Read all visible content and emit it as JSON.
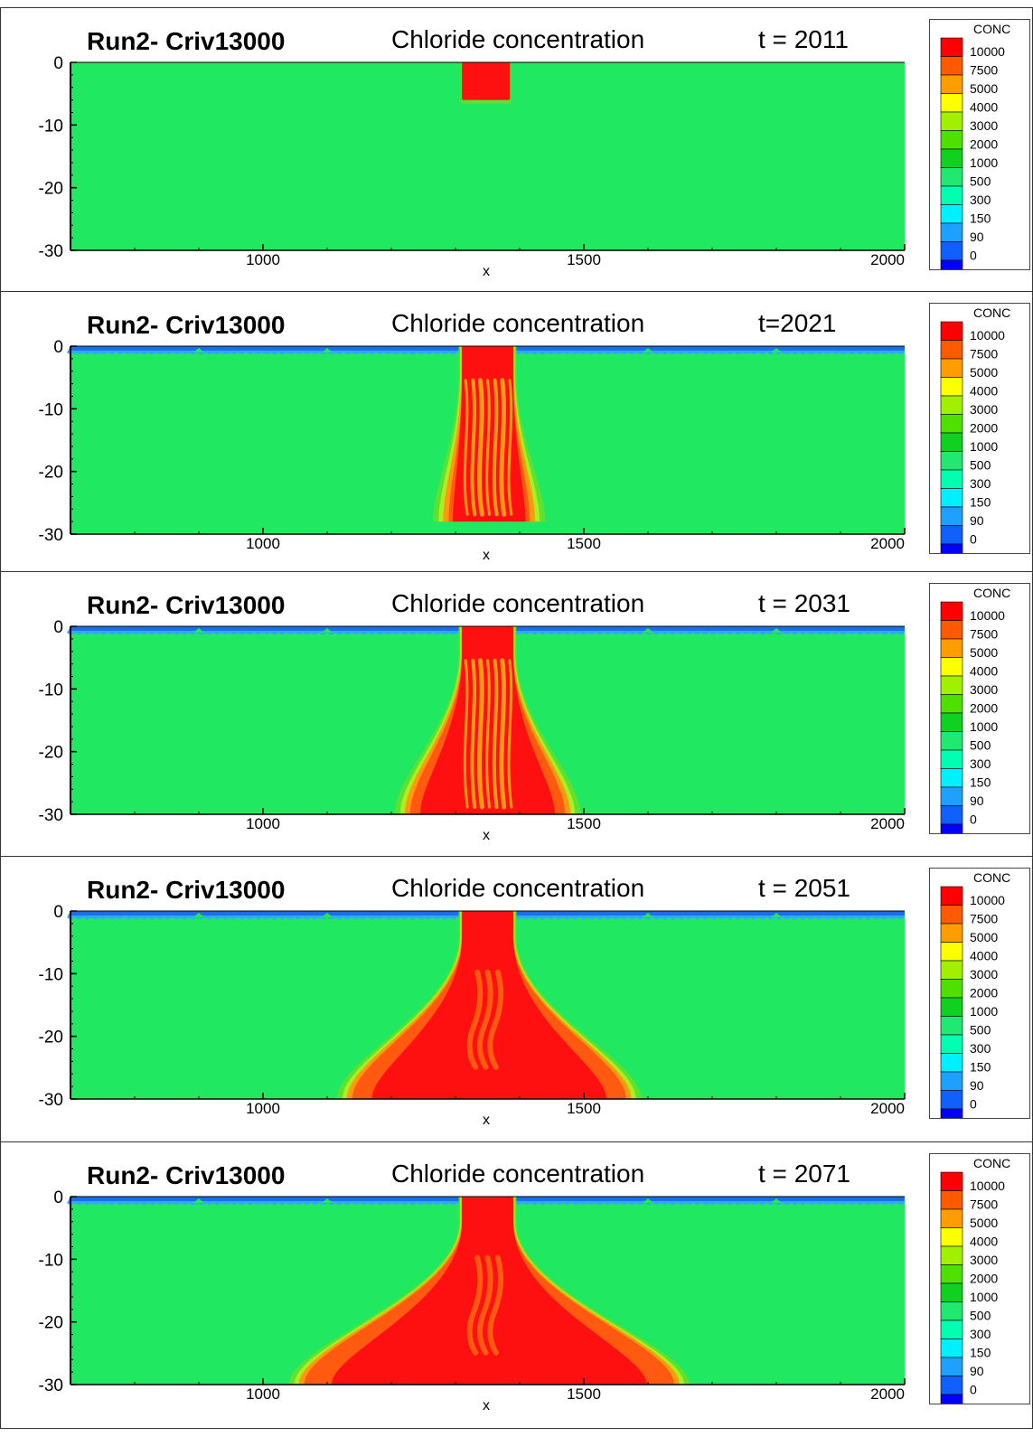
{
  "colors": {
    "background": "#20e860",
    "red": "#ff1010",
    "orange_dark": "#ff5a10",
    "orange": "#ff9a10",
    "yellow_green": "#a8f020",
    "green": "#60e030",
    "surface_blue": "#1a6fe8",
    "light_blue": "#30a8ff"
  },
  "legend": {
    "title": "CONC",
    "levels": [
      {
        "label": "10000",
        "color": "#ff0000"
      },
      {
        "label": "7500",
        "color": "#ff5a00"
      },
      {
        "label": "5000",
        "color": "#ff9c00"
      },
      {
        "label": "4000",
        "color": "#ffff00"
      },
      {
        "label": "3000",
        "color": "#a0f000"
      },
      {
        "label": "2000",
        "color": "#50e000"
      },
      {
        "label": "1000",
        "color": "#10d020"
      },
      {
        "label": "500",
        "color": "#20e870"
      },
      {
        "label": "300",
        "color": "#00ffb0"
      },
      {
        "label": "150",
        "color": "#00f0ff"
      },
      {
        "label": "90",
        "color": "#1ea0ff"
      },
      {
        "label": "0",
        "color": "#1060ff"
      },
      {
        "label": "",
        "color": "#0000ff"
      }
    ]
  },
  "chart_data": [
    {
      "type": "heatmap",
      "run_label": "Run2- Criv13000",
      "title": "Chloride concentration",
      "time_label": "t =  2011",
      "xlabel": "x",
      "x_ticks": [
        "1000",
        "1500",
        "2000"
      ],
      "y_ticks": [
        "0",
        "-10",
        "-20",
        "-30"
      ],
      "xlim": [
        700,
        2000
      ],
      "ylim": [
        -30,
        0
      ],
      "plume": {
        "source_x": [
          1310,
          1385
        ],
        "source_depth": 6,
        "spread_depth": 0,
        "base_x": [
          1310,
          1385
        ],
        "fingers": false
      },
      "surface_seawater": false
    },
    {
      "type": "heatmap",
      "run_label": "Run2- Criv13000",
      "title": "Chloride concentration",
      "time_label": "t=2021",
      "xlabel": "x",
      "x_ticks": [
        "1000",
        "1500",
        "2000"
      ],
      "y_ticks": [
        "0",
        "-10",
        "-20",
        "-30"
      ],
      "xlim": [
        700,
        2000
      ],
      "ylim": [
        -30,
        0
      ],
      "plume": {
        "source_x": [
          1310,
          1390
        ],
        "source_depth": 4,
        "spread_depth": 28,
        "base_x": [
          1285,
          1420
        ],
        "fingers": true
      },
      "surface_seawater": true
    },
    {
      "type": "heatmap",
      "run_label": "Run2- Criv13000",
      "title": "Chloride concentration",
      "time_label": "t = 2031",
      "xlabel": "x",
      "x_ticks": [
        "1000",
        "1500",
        "2000"
      ],
      "y_ticks": [
        "0",
        "-10",
        "-20",
        "-30"
      ],
      "xlim": [
        700,
        2000
      ],
      "ylim": [
        -30,
        0
      ],
      "plume": {
        "source_x": [
          1310,
          1390
        ],
        "source_depth": 4,
        "spread_depth": 30,
        "base_x": [
          1225,
          1475
        ],
        "fingers": true
      },
      "surface_seawater": true
    },
    {
      "type": "heatmap",
      "run_label": "Run2- Criv13000",
      "title": "Chloride concentration",
      "time_label": "t =  2051",
      "xlabel": "x",
      "x_ticks": [
        "1000",
        "1500",
        "2000"
      ],
      "y_ticks": [
        "0",
        "-10",
        "-20",
        "-30"
      ],
      "xlim": [
        700,
        2000
      ],
      "ylim": [
        -30,
        0
      ],
      "plume": {
        "source_x": [
          1310,
          1390
        ],
        "source_depth": 4,
        "spread_depth": 30,
        "base_x": [
          1135,
          1570
        ],
        "fingers": false
      },
      "surface_seawater": true
    },
    {
      "type": "heatmap",
      "run_label": "Run2- Criv13000",
      "title": "Chloride concentration",
      "time_label": "t =  2071",
      "xlabel": "x",
      "x_ticks": [
        "1000",
        "1500",
        "2000"
      ],
      "y_ticks": [
        "0",
        "-10",
        "-20",
        "-30"
      ],
      "xlim": [
        700,
        2000
      ],
      "ylim": [
        -30,
        0
      ],
      "plume": {
        "source_x": [
          1310,
          1390
        ],
        "source_depth": 4,
        "spread_depth": 30,
        "base_x": [
          1060,
          1645
        ],
        "fingers": false
      },
      "surface_seawater": true
    }
  ]
}
